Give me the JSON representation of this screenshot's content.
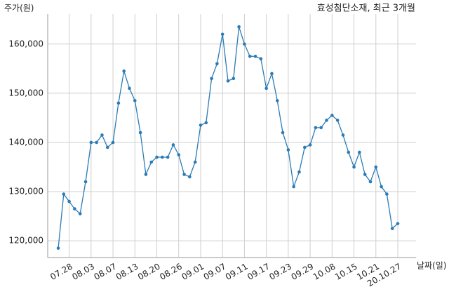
{
  "chart_data": {
    "type": "line",
    "title": "효성첨단소재, 최근 3개월",
    "y_label": "주가(원)",
    "x_label": "날짜(일)",
    "categories": [
      null,
      null,
      "07.28",
      null,
      null,
      null,
      "08.03",
      null,
      null,
      null,
      "08.07",
      null,
      null,
      null,
      "08.13",
      null,
      null,
      null,
      "08.20",
      null,
      null,
      null,
      "08.26",
      null,
      null,
      null,
      "09.01",
      null,
      null,
      null,
      "09.07",
      null,
      null,
      null,
      "09.11",
      null,
      null,
      null,
      "09.17",
      null,
      null,
      null,
      "09.23",
      null,
      null,
      null,
      "09.29",
      null,
      null,
      null,
      "10.08",
      null,
      null,
      null,
      "10.15",
      null,
      null,
      null,
      "10.21",
      null,
      null,
      null,
      "20.10.27"
    ],
    "series": [
      {
        "color": "#2b7bb4",
        "values": [
          118500,
          129500,
          128000,
          126500,
          125500,
          132000,
          140000,
          140000,
          141500,
          139000,
          140000,
          148000,
          154500,
          151000,
          148500,
          142000,
          133500,
          136000,
          137000,
          137000,
          137000,
          139500,
          137500,
          133500,
          133000,
          136000,
          143500,
          144000,
          153000,
          156000,
          162000,
          152500,
          153000,
          163500,
          160000,
          157500,
          157500,
          157000,
          151000,
          154000,
          148500,
          142000,
          138500,
          131000,
          134000,
          139000,
          139500,
          143000,
          143000,
          144500,
          145500,
          144500,
          141500,
          138000,
          135000,
          138000,
          133500,
          132000,
          135000,
          131000,
          129500,
          122500,
          123500
        ]
      }
    ],
    "ylim": [
      116600,
      166100
    ],
    "yticks": [
      {
        "value": 120000,
        "label": "120,000"
      },
      {
        "value": 130000,
        "label": "130,000"
      },
      {
        "value": 140000,
        "label": "140,000"
      },
      {
        "value": 150000,
        "label": "150,000"
      },
      {
        "value": 160000,
        "label": "160,000"
      }
    ],
    "grid": true
  }
}
